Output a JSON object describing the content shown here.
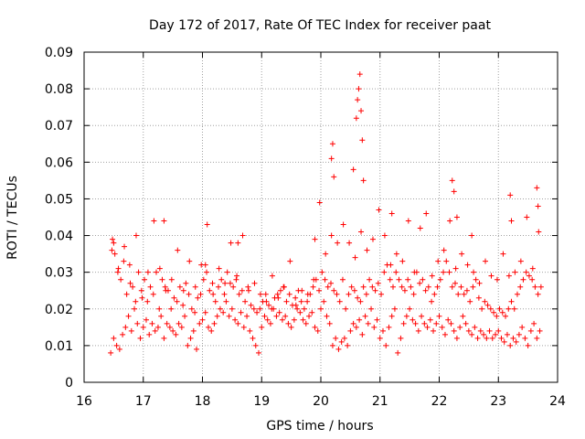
{
  "chart_data": {
    "type": "scatter",
    "title": "Day 172 of 2017, Rate Of TEC Index for receiver paat",
    "xlabel": "GPS time / hours",
    "ylabel": "ROTI / TECUs",
    "xlim": [
      16,
      24
    ],
    "ylim": [
      0,
      0.09
    ],
    "xticks": [
      "16",
      "17",
      "18",
      "19",
      "20",
      "21",
      "22",
      "23",
      "24"
    ],
    "yticks": [
      "0",
      "0.01",
      "0.02",
      "0.03",
      "0.04",
      "0.05",
      "0.06",
      "0.07",
      "0.08",
      "0.09"
    ],
    "grid": true,
    "marker": "+",
    "color": "#ff0000",
    "series": [
      {
        "name": "ROTI",
        "x": [
          16.45,
          16.5,
          16.55,
          16.6,
          16.65,
          16.7,
          16.75,
          16.8,
          16.85,
          16.9,
          16.95,
          17.0,
          17.05,
          17.1,
          17.15,
          17.2,
          17.25,
          17.3,
          17.35,
          17.4,
          17.45,
          17.5,
          17.55,
          17.6,
          17.65,
          17.7,
          17.75,
          17.8,
          17.85,
          17.9,
          17.95,
          18.0,
          18.05,
          18.1,
          18.15,
          18.2,
          18.25,
          18.3,
          18.35,
          18.4,
          18.45,
          18.5,
          18.55,
          18.6,
          18.65,
          18.7,
          18.75,
          18.8,
          18.85,
          18.9,
          18.95,
          19.0,
          19.05,
          19.1,
          19.15,
          19.2,
          19.25,
          19.3,
          19.35,
          19.4,
          19.45,
          19.5,
          19.55,
          19.6,
          19.65,
          19.7,
          19.75,
          19.8,
          19.85,
          19.9,
          19.95,
          20.0,
          20.05,
          20.1,
          20.15,
          20.2,
          20.25,
          20.3,
          20.35,
          20.4,
          20.45,
          20.5,
          20.55,
          20.6,
          20.65,
          20.7,
          20.75,
          20.8,
          20.85,
          20.9,
          20.95,
          21.0,
          21.05,
          21.1,
          21.15,
          21.2,
          21.25,
          21.3,
          21.35,
          21.4,
          21.45,
          21.5,
          21.55,
          21.6,
          21.65,
          21.7,
          21.75,
          21.8,
          21.85,
          21.9,
          21.95,
          22.0,
          22.05,
          22.1,
          22.15,
          22.2,
          22.25,
          22.3,
          22.35,
          22.4,
          22.45,
          22.5,
          22.55,
          22.6,
          22.65,
          22.7,
          22.75,
          22.8,
          22.85,
          22.9,
          22.95,
          23.0,
          23.05,
          23.1,
          23.15,
          23.2,
          23.25,
          23.3,
          23.35,
          23.4,
          23.45,
          23.5,
          23.55,
          23.6,
          23.65,
          23.7,
          16.47,
          16.52,
          16.57,
          16.62,
          16.67,
          16.72,
          16.77,
          16.82,
          16.87,
          16.92,
          16.97,
          17.02,
          17.07,
          17.12,
          17.17,
          17.22,
          17.27,
          17.32,
          17.37,
          17.42,
          17.47,
          17.52,
          17.57,
          17.62,
          17.67,
          17.72,
          17.77,
          17.82,
          17.87,
          17.92,
          17.97,
          18.02,
          18.07,
          18.12,
          18.17,
          18.22,
          18.27,
          18.32,
          18.37,
          18.42,
          18.47,
          18.52,
          18.57,
          18.62,
          18.67,
          18.72,
          18.77,
          18.82,
          18.87,
          18.92,
          18.97,
          19.02,
          19.07,
          19.12,
          19.17,
          19.22,
          19.27,
          19.32,
          19.37,
          19.42,
          19.47,
          19.52,
          19.57,
          19.62,
          19.67,
          19.72,
          19.77,
          19.82,
          19.87,
          19.92,
          19.97,
          20.02,
          20.07,
          20.12,
          20.17,
          20.22,
          20.27,
          20.32,
          20.37,
          20.42,
          20.47,
          20.52,
          20.57,
          20.62,
          20.67,
          20.72,
          20.77,
          20.82,
          20.87,
          20.92,
          20.97,
          21.02,
          21.07,
          21.12,
          21.17,
          21.22,
          21.27,
          21.32,
          21.37,
          21.42,
          21.47,
          21.52,
          21.57,
          21.62,
          21.67,
          21.72,
          21.77,
          21.82,
          21.87,
          21.92,
          21.97,
          22.02,
          22.07,
          22.12,
          22.17,
          22.22,
          22.27,
          22.32,
          22.37,
          22.42,
          22.47,
          22.52,
          22.57,
          22.62,
          22.67,
          22.72,
          22.77,
          22.82,
          22.87,
          22.92,
          22.97,
          23.02,
          23.07,
          23.12,
          23.17,
          23.22,
          23.27,
          23.32,
          23.37,
          23.42,
          23.47,
          23.52,
          23.57,
          23.62,
          23.67,
          23.72,
          16.48,
          16.58,
          16.68,
          16.78,
          16.88,
          16.98,
          17.08,
          17.18,
          17.28,
          17.38,
          17.48,
          17.58,
          17.68,
          17.78,
          17.88,
          17.98,
          18.08,
          18.18,
          18.28,
          18.38,
          18.48,
          18.58,
          18.68,
          18.78,
          18.88,
          18.98,
          19.08,
          19.18,
          19.28,
          19.38,
          19.48,
          19.58,
          19.68,
          19.78,
          19.88,
          19.98,
          20.08,
          20.18,
          20.28,
          20.38,
          20.48,
          20.58,
          20.68,
          20.78,
          20.88,
          20.98,
          21.08,
          21.18,
          21.28,
          21.38,
          21.48,
          21.58,
          21.68,
          21.78,
          21.88,
          21.98,
          22.08,
          22.18,
          22.28,
          22.38,
          22.48,
          22.58,
          22.68,
          22.78,
          22.88,
          22.98,
          23.08,
          23.18,
          23.28,
          23.38,
          23.48,
          23.58,
          23.68,
          20.18,
          20.2,
          20.22,
          20.6,
          20.62,
          20.64,
          20.66,
          20.68,
          20.7,
          20.72,
          20.55,
          22.22,
          22.25,
          23.2,
          23.22,
          23.65,
          23.67,
          16.5,
          17.35,
          18.05,
          18.6,
          19.9,
          21.2,
          22.3,
          22.55
        ],
        "y": [
          0.008,
          0.012,
          0.01,
          0.009,
          0.013,
          0.015,
          0.018,
          0.014,
          0.02,
          0.016,
          0.012,
          0.015,
          0.017,
          0.013,
          0.016,
          0.014,
          0.015,
          0.018,
          0.012,
          0.016,
          0.015,
          0.014,
          0.013,
          0.016,
          0.015,
          0.018,
          0.01,
          0.012,
          0.014,
          0.009,
          0.016,
          0.017,
          0.019,
          0.015,
          0.014,
          0.016,
          0.018,
          0.02,
          0.019,
          0.022,
          0.018,
          0.02,
          0.017,
          0.016,
          0.019,
          0.015,
          0.018,
          0.014,
          0.012,
          0.01,
          0.008,
          0.015,
          0.018,
          0.017,
          0.016,
          0.02,
          0.018,
          0.019,
          0.017,
          0.018,
          0.016,
          0.015,
          0.017,
          0.02,
          0.019,
          0.017,
          0.016,
          0.018,
          0.019,
          0.015,
          0.014,
          0.02,
          0.022,
          0.018,
          0.016,
          0.01,
          0.012,
          0.009,
          0.011,
          0.012,
          0.01,
          0.014,
          0.016,
          0.015,
          0.017,
          0.013,
          0.018,
          0.016,
          0.02,
          0.015,
          0.017,
          0.012,
          0.014,
          0.01,
          0.015,
          0.018,
          0.02,
          0.008,
          0.012,
          0.016,
          0.018,
          0.02,
          0.017,
          0.016,
          0.014,
          0.018,
          0.016,
          0.015,
          0.017,
          0.014,
          0.016,
          0.018,
          0.015,
          0.013,
          0.017,
          0.016,
          0.014,
          0.012,
          0.015,
          0.018,
          0.016,
          0.014,
          0.013,
          0.015,
          0.012,
          0.014,
          0.013,
          0.012,
          0.014,
          0.012,
          0.013,
          0.014,
          0.012,
          0.011,
          0.013,
          0.01,
          0.012,
          0.011,
          0.013,
          0.015,
          0.012,
          0.01,
          0.014,
          0.016,
          0.012,
          0.014,
          0.036,
          0.035,
          0.03,
          0.028,
          0.033,
          0.024,
          0.032,
          0.026,
          0.022,
          0.03,
          0.025,
          0.028,
          0.022,
          0.026,
          0.024,
          0.03,
          0.02,
          0.028,
          0.026,
          0.025,
          0.02,
          0.023,
          0.022,
          0.026,
          0.021,
          0.027,
          0.024,
          0.02,
          0.019,
          0.023,
          0.024,
          0.028,
          0.03,
          0.025,
          0.027,
          0.022,
          0.026,
          0.028,
          0.024,
          0.03,
          0.027,
          0.026,
          0.028,
          0.024,
          0.025,
          0.022,
          0.026,
          0.021,
          0.02,
          0.019,
          0.02,
          0.022,
          0.024,
          0.021,
          0.02,
          0.023,
          0.024,
          0.025,
          0.026,
          0.022,
          0.024,
          0.021,
          0.023,
          0.025,
          0.022,
          0.02,
          0.022,
          0.024,
          0.026,
          0.028,
          0.025,
          0.03,
          0.028,
          0.026,
          0.027,
          0.025,
          0.024,
          0.022,
          0.028,
          0.02,
          0.024,
          0.026,
          0.025,
          0.023,
          0.022,
          0.026,
          0.024,
          0.028,
          0.026,
          0.025,
          0.027,
          0.024,
          0.03,
          0.032,
          0.028,
          0.026,
          0.03,
          0.028,
          0.026,
          0.025,
          0.028,
          0.026,
          0.024,
          0.03,
          0.027,
          0.028,
          0.025,
          0.026,
          0.022,
          0.024,
          0.026,
          0.028,
          0.03,
          0.033,
          0.03,
          0.026,
          0.027,
          0.024,
          0.026,
          0.024,
          0.025,
          0.022,
          0.026,
          0.028,
          0.023,
          0.02,
          0.022,
          0.021,
          0.02,
          0.019,
          0.018,
          0.02,
          0.019,
          0.018,
          0.02,
          0.022,
          0.02,
          0.024,
          0.026,
          0.028,
          0.03,
          0.029,
          0.028,
          0.026,
          0.024,
          0.026,
          0.039,
          0.031,
          0.037,
          0.027,
          0.04,
          0.023,
          0.03,
          0.044,
          0.031,
          0.025,
          0.028,
          0.036,
          0.025,
          0.033,
          0.026,
          0.032,
          0.043,
          0.024,
          0.031,
          0.027,
          0.038,
          0.029,
          0.04,
          0.025,
          0.027,
          0.024,
          0.022,
          0.029,
          0.023,
          0.026,
          0.033,
          0.021,
          0.025,
          0.024,
          0.028,
          0.049,
          0.035,
          0.04,
          0.038,
          0.043,
          0.038,
          0.034,
          0.041,
          0.036,
          0.039,
          0.047,
          0.04,
          0.032,
          0.035,
          0.033,
          0.044,
          0.03,
          0.042,
          0.046,
          0.029,
          0.033,
          0.036,
          0.044,
          0.031,
          0.035,
          0.032,
          0.03,
          0.027,
          0.033,
          0.029,
          0.028,
          0.035,
          0.029,
          0.03,
          0.033,
          0.045,
          0.031,
          0.041,
          0.061,
          0.065,
          0.056,
          0.072,
          0.077,
          0.08,
          0.084,
          0.074,
          0.066,
          0.055,
          0.058,
          0.055,
          0.052,
          0.051,
          0.044,
          0.053,
          0.048,
          0.038,
          0.044,
          0.032,
          0.038,
          0.039,
          0.046,
          0.045,
          0.04
        ]
      }
    ]
  }
}
